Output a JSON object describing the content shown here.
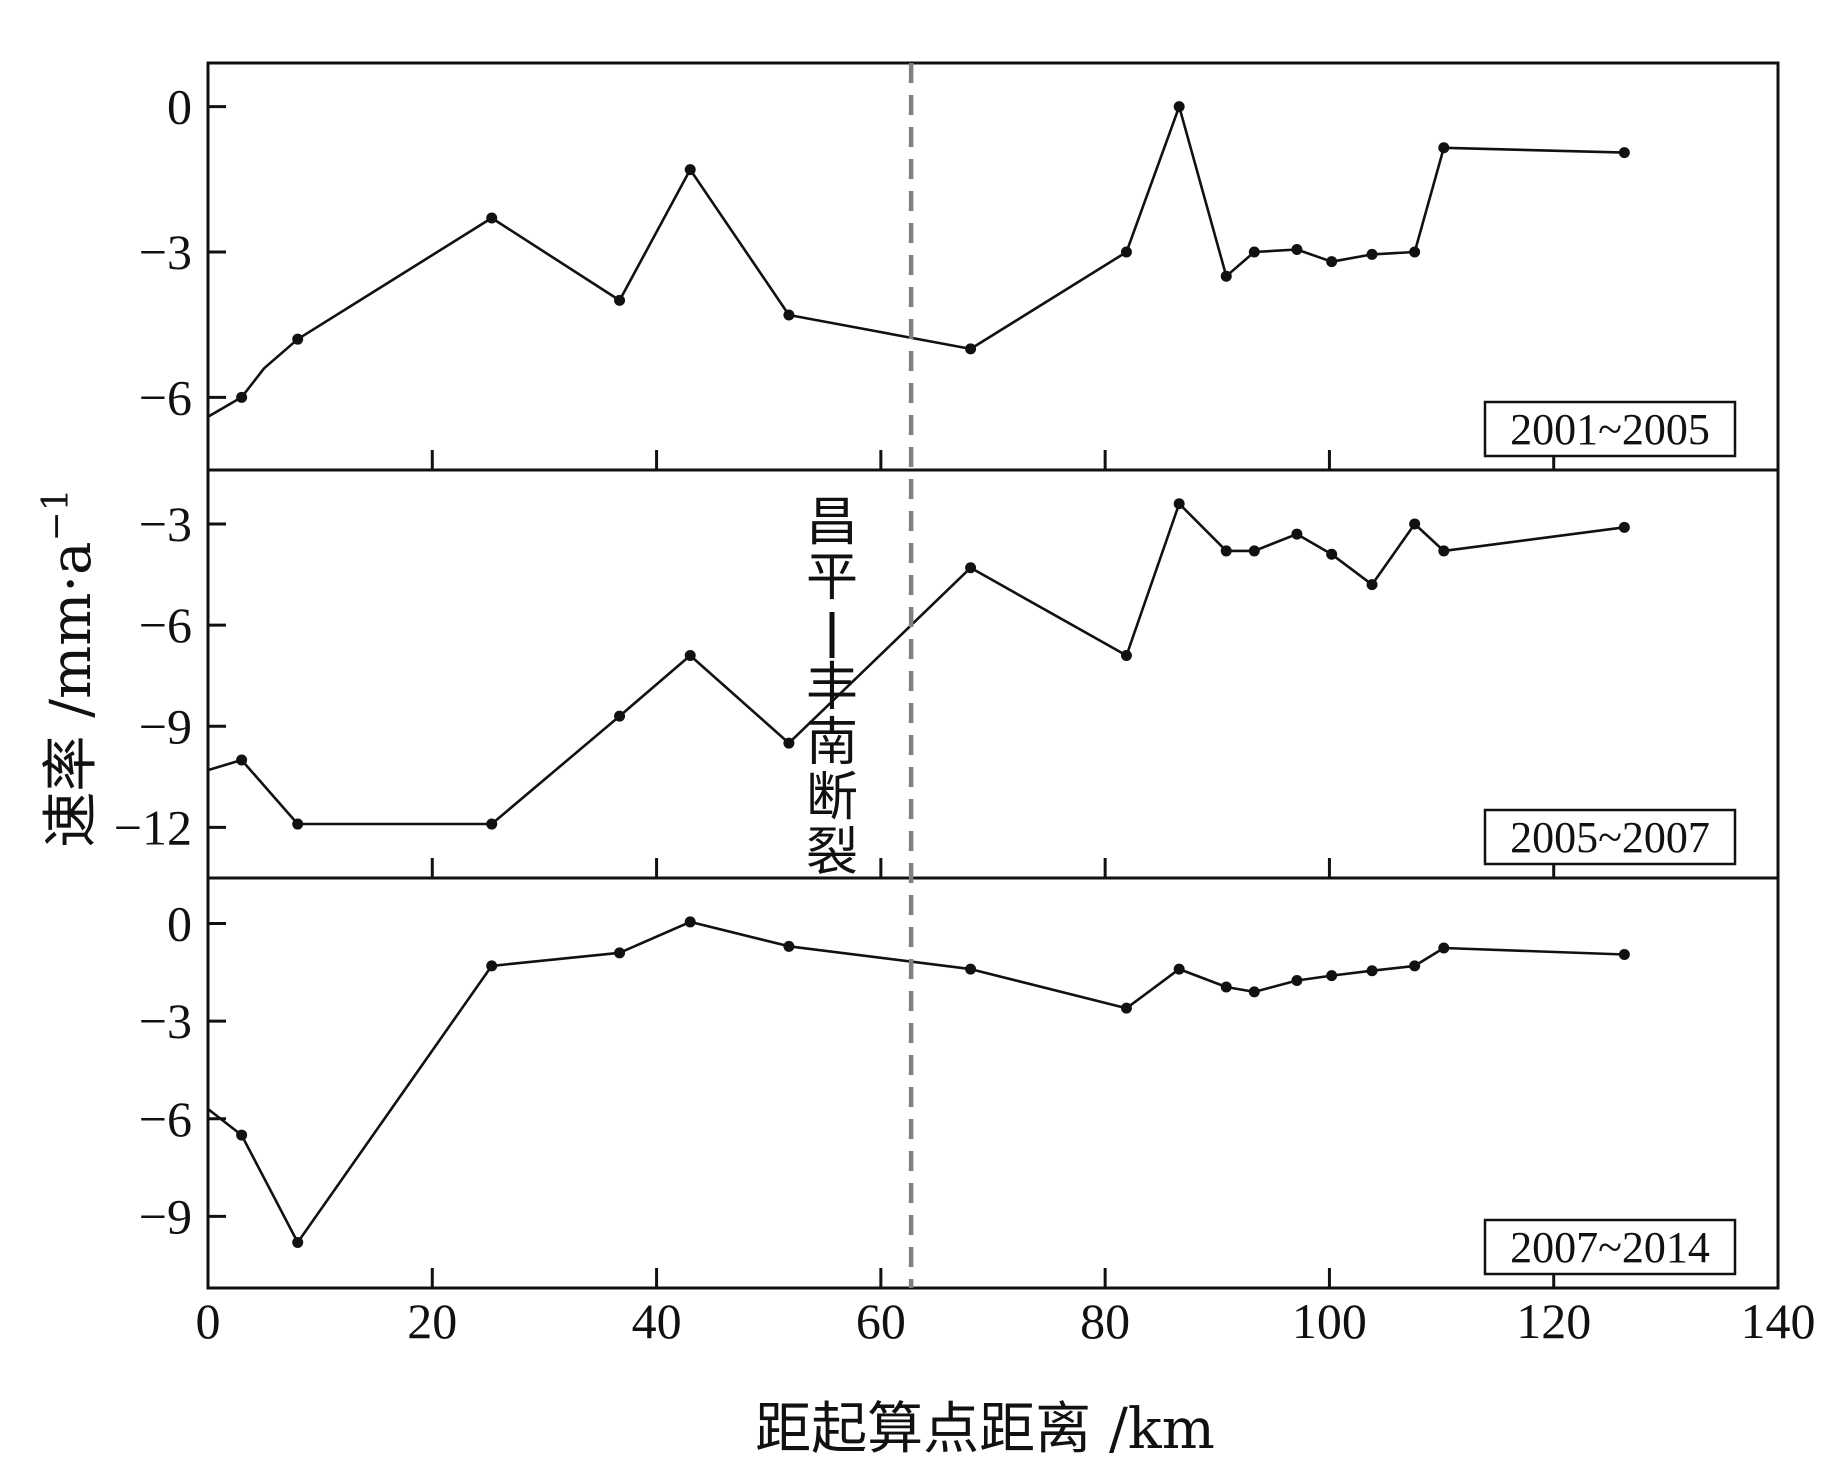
{
  "chart_data": {
    "type": "line",
    "xlabel": "距起算点距离 /km",
    "ylabel": "速率 /mm·a",
    "ylabel_superscript": "−1",
    "xlim": [
      0,
      140
    ],
    "x_ticks": [
      0,
      20,
      40,
      60,
      80,
      100,
      120,
      140
    ],
    "x_tick_labels": [
      "0",
      "20",
      "40",
      "60",
      "80",
      "100",
      "120",
      "140"
    ],
    "fault": {
      "label": "昌平-丰南断裂",
      "label_chars": [
        "昌",
        "平",
        "-",
        "丰",
        "南",
        "断",
        "裂"
      ],
      "x": 62.7,
      "color": "#808080"
    },
    "line_color": "#111111",
    "panels": [
      {
        "label": "2001~2005",
        "ylim": [
          -7.5,
          0.9
        ],
        "y_ticks": [
          0,
          -3,
          -6
        ],
        "y_tick_labels": [
          "0",
          "−3",
          "−6"
        ],
        "x": [
          0,
          3,
          5,
          8,
          25.3,
          36.7,
          43,
          51.8,
          68,
          81.9,
          86.6,
          90.8,
          93.3,
          97.1,
          100.2,
          103.8,
          107.6,
          110.2,
          126.3
        ],
        "y": [
          -6.4,
          -6.0,
          -5.4,
          -4.8,
          -2.3,
          -4.0,
          -1.3,
          -4.3,
          -5.0,
          -3.0,
          0.0,
          -3.5,
          -3.0,
          -2.95,
          -3.2,
          -3.05,
          -3.0,
          -0.85,
          -0.95
        ],
        "markers": [
          false,
          true,
          false,
          true,
          true,
          true,
          true,
          true,
          true,
          true,
          true,
          true,
          true,
          true,
          true,
          true,
          true,
          true,
          true
        ]
      },
      {
        "label": "2005~2007",
        "ylim": [
          -13.5,
          -1.4
        ],
        "y_ticks": [
          -3,
          -6,
          -9,
          -12
        ],
        "y_tick_labels": [
          "−3",
          "−6",
          "−9",
          "−12"
        ],
        "x": [
          0,
          3,
          8,
          25.3,
          36.7,
          43,
          51.8,
          68,
          81.9,
          86.6,
          90.8,
          93.3,
          97.1,
          100.2,
          103.8,
          107.6,
          110.2,
          126.3
        ],
        "y": [
          -10.3,
          -10.0,
          -11.9,
          -11.9,
          -8.7,
          -6.9,
          -9.5,
          -4.3,
          -6.9,
          -2.4,
          -3.8,
          -3.8,
          -3.3,
          -3.9,
          -4.8,
          -3.0,
          -3.8,
          -3.1
        ],
        "markers": [
          false,
          true,
          true,
          true,
          true,
          true,
          true,
          true,
          true,
          true,
          true,
          true,
          true,
          true,
          true,
          true,
          true,
          true
        ]
      },
      {
        "label": "2007~2014",
        "ylim": [
          -11.2,
          1.4
        ],
        "y_ticks": [
          0,
          -3,
          -6,
          -9
        ],
        "y_tick_labels": [
          "0",
          "−3",
          "−6",
          "−9"
        ],
        "x": [
          0,
          3,
          8,
          25.3,
          36.7,
          43,
          51.8,
          68,
          81.9,
          86.6,
          90.8,
          93.3,
          97.1,
          100.2,
          103.8,
          107.6,
          110.2,
          126.3
        ],
        "y": [
          -5.7,
          -6.5,
          -9.8,
          -1.3,
          -0.9,
          0.05,
          -0.7,
          -1.4,
          -2.6,
          -1.4,
          -1.95,
          -2.1,
          -1.75,
          -1.6,
          -1.45,
          -1.3,
          -0.75,
          -0.95
        ],
        "markers": [
          false,
          true,
          true,
          true,
          true,
          true,
          true,
          true,
          true,
          true,
          true,
          true,
          true,
          true,
          true,
          true,
          true,
          true
        ]
      }
    ]
  }
}
